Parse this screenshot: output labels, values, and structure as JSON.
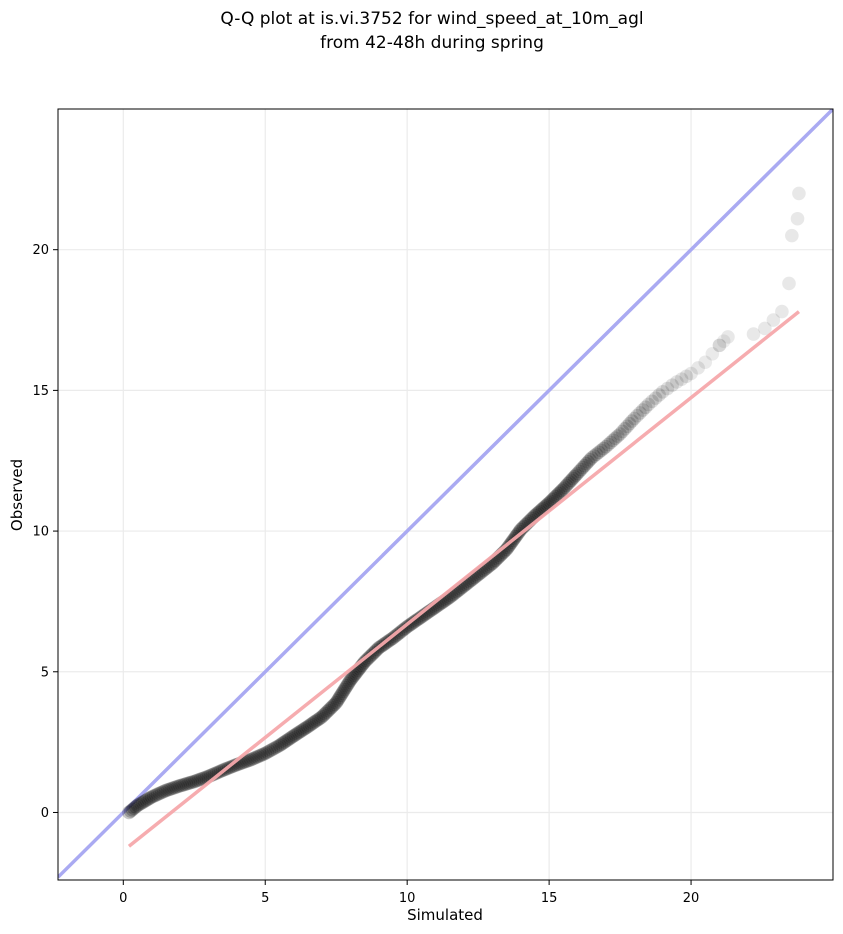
{
  "chart_data": {
    "type": "scatter",
    "title": [
      "Q-Q plot at is.vi.3752 for wind_speed_at_10m_agl",
      "from 42-48h during spring"
    ],
    "xlabel": "Simulated",
    "ylabel": "Observed",
    "xlim": [
      -2.3,
      25.0
    ],
    "ylim": [
      -2.4,
      25.0
    ],
    "xticks": [
      0,
      5,
      10,
      15,
      20
    ],
    "yticks": [
      0,
      5,
      10,
      15,
      20
    ],
    "grid": true,
    "colors": {
      "points": "#000000",
      "identity_line": "#aaaaf2",
      "fit_line": "#f5a8ab"
    },
    "quantile_curve": [
      [
        0.2,
        0.0
      ],
      [
        0.5,
        0.25
      ],
      [
        1.0,
        0.55
      ],
      [
        1.5,
        0.78
      ],
      [
        2.0,
        0.95
      ],
      [
        2.5,
        1.1
      ],
      [
        3.0,
        1.28
      ],
      [
        3.5,
        1.5
      ],
      [
        4.0,
        1.7
      ],
      [
        4.5,
        1.88
      ],
      [
        5.0,
        2.1
      ],
      [
        5.5,
        2.38
      ],
      [
        6.0,
        2.72
      ],
      [
        6.5,
        3.05
      ],
      [
        7.0,
        3.4
      ],
      [
        7.5,
        3.9
      ],
      [
        8.0,
        4.7
      ],
      [
        8.5,
        5.35
      ],
      [
        9.0,
        5.85
      ],
      [
        9.5,
        6.2
      ],
      [
        10.0,
        6.6
      ],
      [
        10.5,
        6.95
      ],
      [
        11.0,
        7.3
      ],
      [
        11.5,
        7.65
      ],
      [
        12.0,
        8.05
      ],
      [
        12.5,
        8.45
      ],
      [
        13.0,
        8.85
      ],
      [
        13.5,
        9.35
      ],
      [
        14.0,
        10.05
      ],
      [
        14.5,
        10.55
      ],
      [
        15.0,
        11.0
      ],
      [
        15.5,
        11.5
      ],
      [
        16.0,
        12.05
      ],
      [
        16.5,
        12.6
      ],
      [
        17.0,
        13.0
      ],
      [
        17.5,
        13.45
      ],
      [
        18.0,
        14.0
      ],
      [
        18.5,
        14.5
      ],
      [
        19.0,
        14.95
      ],
      [
        19.5,
        15.3
      ],
      [
        20.0,
        15.6
      ],
      [
        20.5,
        16.0
      ],
      [
        21.0,
        16.6
      ],
      [
        21.3,
        16.9
      ]
    ],
    "tail_points": [
      [
        21.0,
        16.6
      ],
      [
        21.3,
        16.9
      ],
      [
        22.2,
        17.0
      ],
      [
        22.6,
        17.2
      ],
      [
        22.9,
        17.5
      ],
      [
        23.2,
        17.8
      ],
      [
        23.45,
        18.8
      ],
      [
        23.55,
        20.5
      ],
      [
        23.75,
        21.1
      ],
      [
        23.8,
        22.0
      ]
    ],
    "identity_line": [
      [
        -2.3,
        -2.3
      ],
      [
        25.0,
        25.0
      ]
    ],
    "fit_line": [
      [
        0.2,
        -1.2
      ],
      [
        23.8,
        17.8
      ]
    ]
  }
}
